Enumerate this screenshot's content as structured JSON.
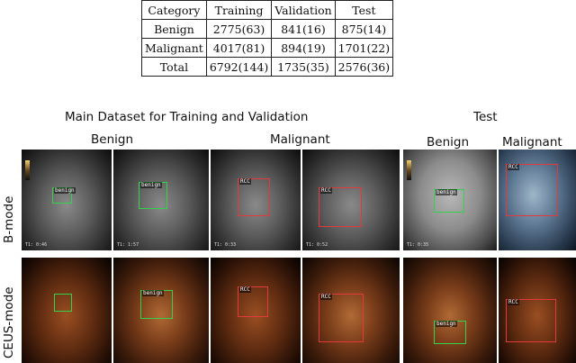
{
  "table": {
    "headers": [
      "Category",
      "Training",
      "Validation",
      "Test"
    ],
    "rows": [
      [
        "Benign",
        "2775(63)",
        "841(16)",
        "875(14)"
      ],
      [
        "Malignant",
        "4017(81)",
        "894(19)",
        "1701(22)"
      ],
      [
        "Total",
        "6792(144)",
        "1735(35)",
        "2576(36)"
      ]
    ]
  },
  "captions": {
    "main_dataset": "Main Dataset for Training and Validation",
    "test": "Test",
    "main_benign": "Benign",
    "main_malignant": "Malignant",
    "test_benign": "Benign",
    "test_malignant": "Malignant",
    "row_bmode": "B-mode",
    "row_ceus": "CEUS-mode"
  },
  "box_labels": {
    "benign": "benign",
    "rcc": "RCC"
  },
  "timestamps": {
    "p1": "T1: 0:46",
    "p2": "T1: 1:57",
    "p3": "T1: 0:33",
    "p4": "T1: 0:52",
    "p5": "T1: 0:35"
  }
}
